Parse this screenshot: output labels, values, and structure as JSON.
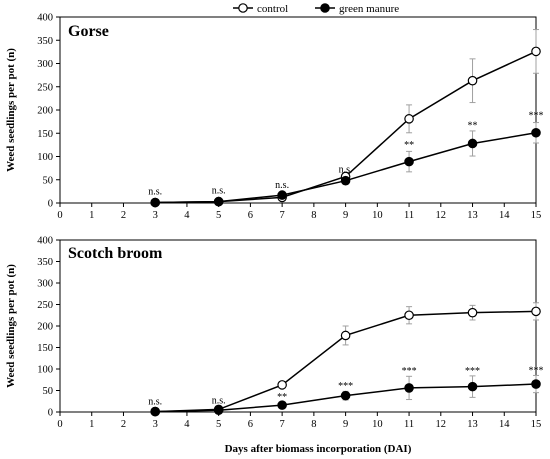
{
  "legend": {
    "entries": [
      {
        "label": "control",
        "marker": "open-circle"
      },
      {
        "label": "green manure",
        "marker": "filled-circle"
      }
    ],
    "placement": "top-center"
  },
  "chart_data": [
    {
      "type": "line",
      "title": "Gorse",
      "xlabel": "",
      "ylabel": "Weed seedlings per pot (n)",
      "xlim": [
        0,
        15
      ],
      "ylim": [
        0,
        400
      ],
      "xticks": [
        0,
        1,
        2,
        3,
        4,
        5,
        6,
        7,
        8,
        9,
        10,
        11,
        12,
        13,
        14,
        15
      ],
      "yticks": [
        0,
        50,
        100,
        150,
        200,
        250,
        300,
        350,
        400
      ],
      "grid": false,
      "series": [
        {
          "name": "control",
          "marker": "open-circle",
          "x": [
            3,
            5,
            7,
            9,
            11,
            13,
            15
          ],
          "y": [
            1,
            3,
            12,
            57,
            181,
            263,
            326
          ],
          "err": [
            0,
            1,
            3,
            5,
            30,
            47,
            47
          ]
        },
        {
          "name": "green manure",
          "marker": "filled-circle",
          "x": [
            3,
            5,
            7,
            9,
            11,
            13,
            15
          ],
          "y": [
            1,
            3,
            17,
            48,
            89,
            128,
            151
          ],
          "err": [
            0,
            1,
            4,
            5,
            22,
            27,
            22
          ]
        }
      ],
      "annotations": [
        {
          "x": 3,
          "text": "n.s.",
          "y": 18
        },
        {
          "x": 5,
          "text": "n.s.",
          "y": 20
        },
        {
          "x": 7,
          "text": "n.s.",
          "y": 32
        },
        {
          "x": 9,
          "text": "n.s.",
          "y": 66
        },
        {
          "x": 11,
          "text": "**",
          "y": 118
        },
        {
          "x": 13,
          "text": "**",
          "y": 160
        },
        {
          "x": 15,
          "text": "***",
          "y": 182
        }
      ]
    },
    {
      "type": "line",
      "title": "Scotch broom",
      "xlabel": "Days after biomass incorporation  (DAI)",
      "ylabel": "Weed seedlings per pot (n)",
      "xlim": [
        0,
        15
      ],
      "ylim": [
        0,
        400
      ],
      "xticks": [
        0,
        1,
        2,
        3,
        4,
        5,
        6,
        7,
        8,
        9,
        10,
        11,
        12,
        13,
        14,
        15
      ],
      "yticks": [
        0,
        50,
        100,
        150,
        200,
        250,
        300,
        350,
        400
      ],
      "grid": false,
      "series": [
        {
          "name": "control",
          "marker": "open-circle",
          "x": [
            3,
            5,
            7,
            9,
            11,
            13,
            15
          ],
          "y": [
            1,
            6,
            63,
            178,
            225,
            231,
            234
          ],
          "err": [
            0,
            2,
            5,
            22,
            20,
            17,
            20
          ]
        },
        {
          "name": "green manure",
          "marker": "filled-circle",
          "x": [
            3,
            5,
            7,
            9,
            11,
            13,
            15
          ],
          "y": [
            1,
            4,
            16,
            38,
            56,
            59,
            65
          ],
          "err": [
            0,
            2,
            4,
            10,
            27,
            25,
            20
          ]
        }
      ],
      "annotations": [
        {
          "x": 3,
          "text": "n.s.",
          "y": 18
        },
        {
          "x": 5,
          "text": "n.s.",
          "y": 20
        },
        {
          "x": 7,
          "text": "**",
          "y": 28
        },
        {
          "x": 9,
          "text": "***",
          "y": 54
        },
        {
          "x": 11,
          "text": "***",
          "y": 88
        },
        {
          "x": 13,
          "text": "***",
          "y": 88
        },
        {
          "x": 15,
          "text": "***",
          "y": 90
        }
      ]
    }
  ]
}
